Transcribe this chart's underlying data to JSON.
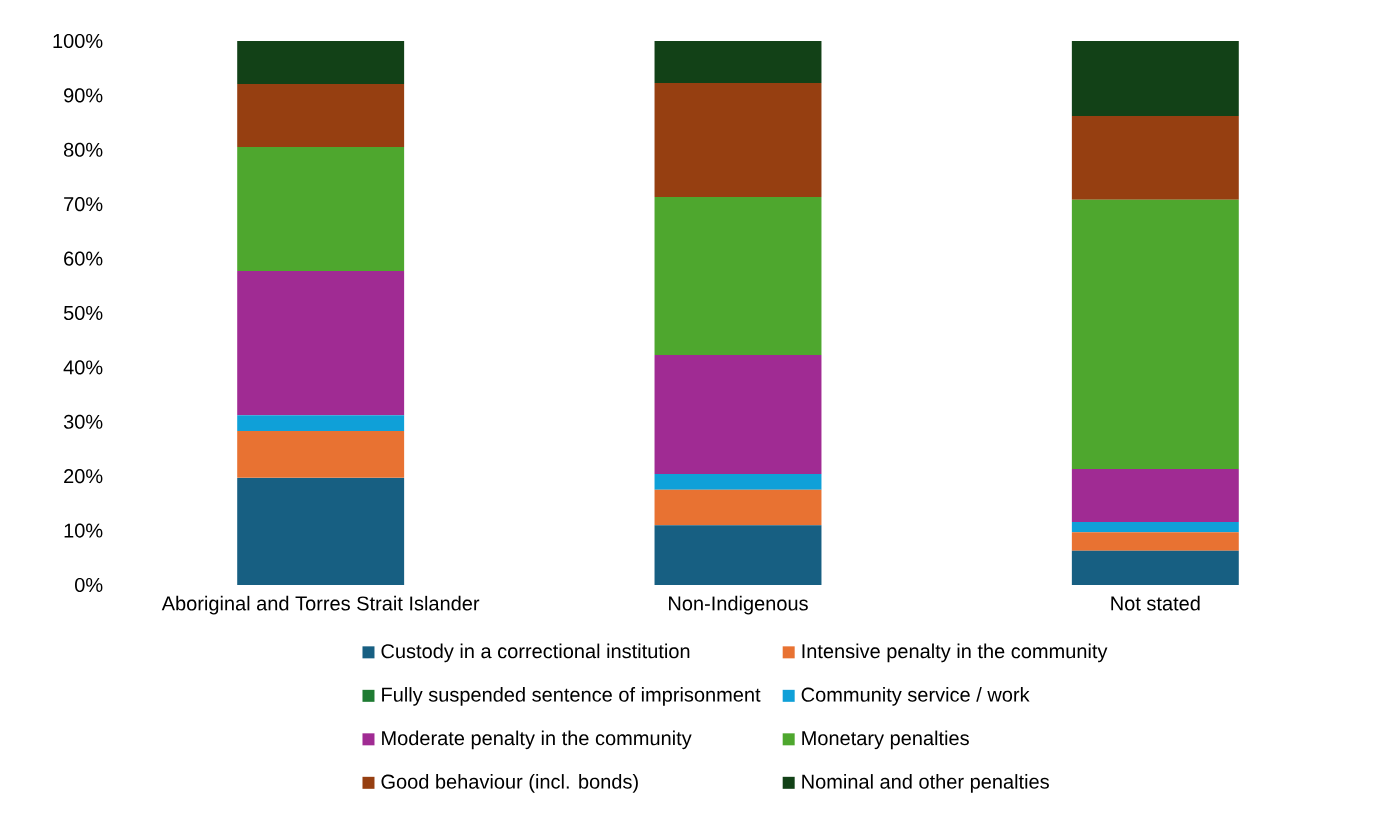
{
  "chart_data": {
    "type": "bar",
    "stacked": true,
    "categories": [
      "Aboriginal and Torres Strait Islander",
      "Non-Indigenous",
      "Not stated"
    ],
    "series": [
      {
        "name": "Custody in a correctional institution",
        "color": "#175f82",
        "values": [
          19.7,
          11.0,
          6.3
        ]
      },
      {
        "name": "Intensive penalty in the community",
        "color": "#e87232",
        "values": [
          8.6,
          6.5,
          3.4
        ]
      },
      {
        "name": "Fully suspended sentence of imprisonment",
        "color": "#1e7b32",
        "values": [
          0,
          0,
          0
        ]
      },
      {
        "name": "Community service / work",
        "color": "#0fa0d8",
        "values": [
          2.9,
          2.9,
          1.9
        ]
      },
      {
        "name": "Moderate penalty in the community",
        "color": "#a02b93",
        "values": [
          26.5,
          21.9,
          9.7
        ]
      },
      {
        "name": "Monetary penalties",
        "color": "#4ea72e",
        "values": [
          22.8,
          29.0,
          49.5
        ]
      },
      {
        "name": "Good behaviour (incl. bonds)",
        "color": "#963f11",
        "values": [
          11.6,
          21.0,
          15.4
        ]
      },
      {
        "name": "Nominal and other penalties",
        "color": "#124117",
        "values": [
          7.9,
          7.7,
          13.8
        ]
      }
    ],
    "ylim": [
      0,
      100
    ],
    "yticks": [
      {
        "value": 0,
        "label": "0%"
      },
      {
        "value": 10,
        "label": "10%"
      },
      {
        "value": 20,
        "label": "20%"
      },
      {
        "value": 30,
        "label": "30%"
      },
      {
        "value": 40,
        "label": "40%"
      },
      {
        "value": 50,
        "label": "50%"
      },
      {
        "value": 60,
        "label": "60%"
      },
      {
        "value": 70,
        "label": "70%"
      },
      {
        "value": 80,
        "label": "80%"
      },
      {
        "value": 90,
        "label": "90%"
      },
      {
        "value": 100,
        "label": "100%"
      }
    ],
    "grid": false,
    "legend": "bottom"
  }
}
